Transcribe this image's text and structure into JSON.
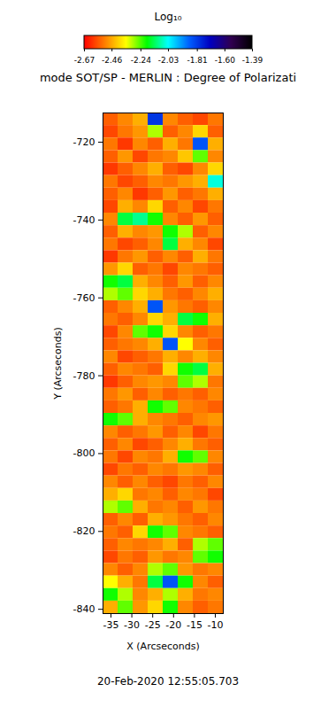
{
  "chart_data": {
    "type": "heatmap",
    "title": "mode SOT/SP - MERLIN : Degree of Polarizati",
    "caption": "20-Feb-2020 12:55:05.703",
    "x_label": "X (Arcseconds)",
    "y_label": "Y (Arcseconds)",
    "xlim": [
      -36.9,
      -8.1
    ],
    "ylim": [
      -841.1,
      -712.5
    ],
    "xticks": [
      -35,
      -30,
      -25,
      -20,
      -15,
      -10
    ],
    "yticks": [
      -840,
      -820,
      -800,
      -780,
      -760,
      -740,
      -720
    ],
    "x_bins": [
      -36.9,
      -33.3,
      -29.7,
      -26.1,
      -22.5,
      -18.9,
      -15.3,
      -11.7,
      -8.1
    ],
    "y_bins": [
      -712.5,
      -715.72,
      -718.93,
      -722.15,
      -725.36,
      -728.58,
      -731.79,
      -735.01,
      -738.22,
      -741.44,
      -744.65,
      -747.87,
      -751.08,
      -754.3,
      -757.51,
      -760.73,
      -763.94,
      -767.16,
      -770.37,
      -773.59,
      -776.8,
      -780.02,
      -783.23,
      -786.45,
      -789.66,
      -792.88,
      -796.09,
      -799.31,
      -802.52,
      -805.74,
      -808.95,
      -812.17,
      -815.38,
      -818.6,
      -821.81,
      -825.03,
      -828.24,
      -831.46,
      -834.67,
      -837.89,
      -841.1
    ],
    "values": [
      [
        -2.55,
        -2.5,
        -2.45,
        -1.8,
        -2.5,
        -2.55,
        -2.58,
        -2.52
      ],
      [
        -2.58,
        -2.52,
        -2.48,
        -2.3,
        -2.55,
        -2.5,
        -2.4,
        -2.55
      ],
      [
        -2.52,
        -2.6,
        -2.5,
        -2.55,
        -2.45,
        -2.52,
        -1.85,
        -2.45
      ],
      [
        -2.55,
        -2.48,
        -2.58,
        -2.52,
        -2.5,
        -2.42,
        -2.25,
        -2.5
      ],
      [
        -2.6,
        -2.55,
        -2.5,
        -2.45,
        -2.55,
        -2.58,
        -2.5,
        -2.4
      ],
      [
        -2.52,
        -2.58,
        -2.55,
        -2.5,
        -2.52,
        -2.48,
        -2.45,
        -2.05
      ],
      [
        -2.55,
        -2.5,
        -2.6,
        -2.55,
        -2.48,
        -2.55,
        -2.52,
        -2.45
      ],
      [
        -2.58,
        -2.45,
        -2.5,
        -2.4,
        -2.55,
        -2.5,
        -2.58,
        -2.52
      ],
      [
        -2.5,
        -2.15,
        -2.1,
        -2.2,
        -2.5,
        -2.55,
        -2.48,
        -2.55
      ],
      [
        -2.55,
        -2.45,
        -2.5,
        -2.48,
        -2.2,
        -2.3,
        -2.55,
        -2.5
      ],
      [
        -2.52,
        -2.58,
        -2.55,
        -2.5,
        -2.15,
        -2.45,
        -2.5,
        -2.58
      ],
      [
        -2.6,
        -2.52,
        -2.48,
        -2.55,
        -2.5,
        -2.55,
        -2.45,
        -2.52
      ],
      [
        -2.48,
        -2.4,
        -2.55,
        -2.52,
        -2.58,
        -2.5,
        -2.52,
        -2.55
      ],
      [
        -2.2,
        -2.15,
        -2.45,
        -2.5,
        -2.55,
        -2.48,
        -2.55,
        -2.5
      ],
      [
        -2.3,
        -2.25,
        -2.4,
        -2.45,
        -2.52,
        -2.55,
        -2.5,
        -2.45
      ],
      [
        -2.55,
        -2.5,
        -2.45,
        -1.85,
        -2.48,
        -2.52,
        -2.55,
        -2.5
      ],
      [
        -2.52,
        -2.55,
        -2.5,
        -2.4,
        -2.45,
        -2.15,
        -2.2,
        -2.45
      ],
      [
        -2.58,
        -2.5,
        -2.25,
        -2.2,
        -2.4,
        -2.5,
        -2.55,
        -2.52
      ],
      [
        -2.55,
        -2.52,
        -2.5,
        -2.45,
        -1.85,
        -2.35,
        -2.5,
        -2.55
      ],
      [
        -2.5,
        -2.58,
        -2.55,
        -2.52,
        -2.45,
        -2.5,
        -2.45,
        -2.5
      ],
      [
        -2.55,
        -2.5,
        -2.52,
        -2.55,
        -2.4,
        -2.2,
        -2.15,
        -2.45
      ],
      [
        -2.6,
        -2.55,
        -2.5,
        -2.48,
        -2.5,
        -2.25,
        -2.3,
        -2.52
      ],
      [
        -2.52,
        -2.48,
        -2.55,
        -2.5,
        -2.55,
        -2.52,
        -2.55,
        -2.5
      ],
      [
        -2.55,
        -2.52,
        -2.45,
        -2.2,
        -2.25,
        -2.5,
        -2.52,
        -2.55
      ],
      [
        -2.2,
        -2.25,
        -2.45,
        -2.5,
        -2.52,
        -2.55,
        -2.5,
        -2.48
      ],
      [
        -2.5,
        -2.55,
        -2.52,
        -2.48,
        -2.55,
        -2.5,
        -2.58,
        -2.52
      ],
      [
        -2.55,
        -2.5,
        -2.58,
        -2.55,
        -2.5,
        -2.45,
        -2.52,
        -2.55
      ],
      [
        -2.52,
        -2.58,
        -2.5,
        -2.52,
        -2.45,
        -2.2,
        -2.25,
        -2.5
      ],
      [
        -2.58,
        -2.52,
        -2.55,
        -2.5,
        -2.52,
        -2.48,
        -2.5,
        -2.55
      ],
      [
        -2.5,
        -2.55,
        -2.5,
        -2.55,
        -2.58,
        -2.52,
        -2.55,
        -2.5
      ],
      [
        -2.45,
        -2.4,
        -2.52,
        -2.5,
        -2.55,
        -2.5,
        -2.52,
        -2.58
      ],
      [
        -2.3,
        -2.25,
        -2.45,
        -2.52,
        -2.5,
        -2.55,
        -2.48,
        -2.52
      ],
      [
        -2.55,
        -2.5,
        -2.55,
        -2.45,
        -2.48,
        -2.52,
        -2.55,
        -2.5
      ],
      [
        -2.52,
        -2.55,
        -2.4,
        -2.2,
        -2.25,
        -2.5,
        -2.52,
        -2.55
      ],
      [
        -2.55,
        -2.5,
        -2.52,
        -2.5,
        -2.45,
        -2.55,
        -2.3,
        -2.25
      ],
      [
        -2.58,
        -2.52,
        -2.55,
        -2.48,
        -2.52,
        -2.5,
        -2.25,
        -2.2
      ],
      [
        -2.5,
        -2.55,
        -2.5,
        -2.3,
        -2.25,
        -2.48,
        -2.52,
        -2.5
      ],
      [
        -2.35,
        -2.45,
        -2.52,
        -2.15,
        -1.85,
        -2.2,
        -2.5,
        -2.55
      ],
      [
        -2.2,
        -2.3,
        -2.5,
        -2.45,
        -2.3,
        -2.45,
        -2.52,
        -2.5
      ],
      [
        -2.45,
        -2.25,
        -2.48,
        -2.4,
        -2.2,
        -2.5,
        -2.55,
        -2.52
      ]
    ],
    "colorbar": {
      "label": "Log₁₀",
      "range": [
        -2.67,
        -1.39
      ],
      "ticks": [
        -2.67,
        -2.46,
        -2.24,
        -2.03,
        -1.81,
        {
          "value": -1.6,
          "label": "-1.60"
        },
        -1.39
      ]
    }
  }
}
